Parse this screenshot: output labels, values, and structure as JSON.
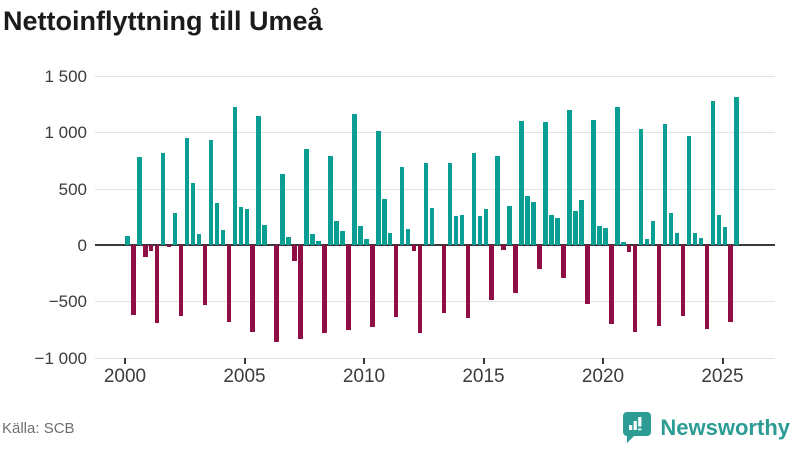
{
  "title": "Nettoinflyttning till Umeå",
  "source": "Källa: SCB",
  "branding": {
    "name": "Newsworthy",
    "icon": "bar-chart-speech-bubble"
  },
  "colors": {
    "positive": "#0a9e94",
    "negative": "#8f0f44",
    "brand_teal": "#2d9c94",
    "gridline": "#e2e2e2",
    "zero_line": "#3a3a3a",
    "axis_text": "#3c3c3c",
    "title_text": "#1b1b1b",
    "source_text": "#6f6f6f"
  },
  "chart_data": {
    "type": "bar",
    "title": "Nettoinflyttning till Umeå",
    "xlabel": "",
    "ylabel": "",
    "start_period": "2000-Q1",
    "end_period": "2025-Q3",
    "period_type": "quarterly",
    "values": [
      80,
      -620,
      780,
      -105,
      -50,
      -690,
      815,
      -15,
      280,
      -630,
      945,
      550,
      100,
      -535,
      935,
      370,
      130,
      -685,
      1220,
      335,
      320,
      -775,
      1140,
      175,
      0,
      -860,
      630,
      70,
      -140,
      -835,
      855,
      95,
      35,
      -780,
      790,
      215,
      120,
      -750,
      1160,
      170,
      50,
      -730,
      1010,
      410,
      105,
      -640,
      690,
      140,
      -50,
      -780,
      730,
      330,
      0,
      -605,
      725,
      255,
      270,
      -650,
      820,
      260,
      315,
      -490,
      790,
      -45,
      345,
      -425,
      1100,
      430,
      385,
      -210,
      1090,
      270,
      240,
      -290,
      1200,
      300,
      395,
      -525,
      1105,
      170,
      155,
      -700,
      1220,
      25,
      -65,
      -770,
      1030,
      50,
      210,
      -715,
      1070,
      280,
      105,
      -630,
      965,
      110,
      60,
      -745,
      1275,
      270,
      160,
      -685,
      1310
    ],
    "ylim": [
      -1000,
      1500
    ],
    "grid": true,
    "legend": "none",
    "y_ticks": [
      {
        "label": "1 500",
        "value": 1500
      },
      {
        "label": "1 000",
        "value": 1000
      },
      {
        "label": "500",
        "value": 500
      },
      {
        "label": "0",
        "value": 0
      },
      {
        "label": "−500",
        "value": -500
      },
      {
        "label": "−1 000",
        "value": -1000
      }
    ],
    "x_ticks": [
      {
        "label": "2000",
        "year": 2000
      },
      {
        "label": "2005",
        "year": 2005
      },
      {
        "label": "2010",
        "year": 2010
      },
      {
        "label": "2015",
        "year": 2015
      },
      {
        "label": "2020",
        "year": 2020
      },
      {
        "label": "2025",
        "year": 2025
      }
    ]
  }
}
